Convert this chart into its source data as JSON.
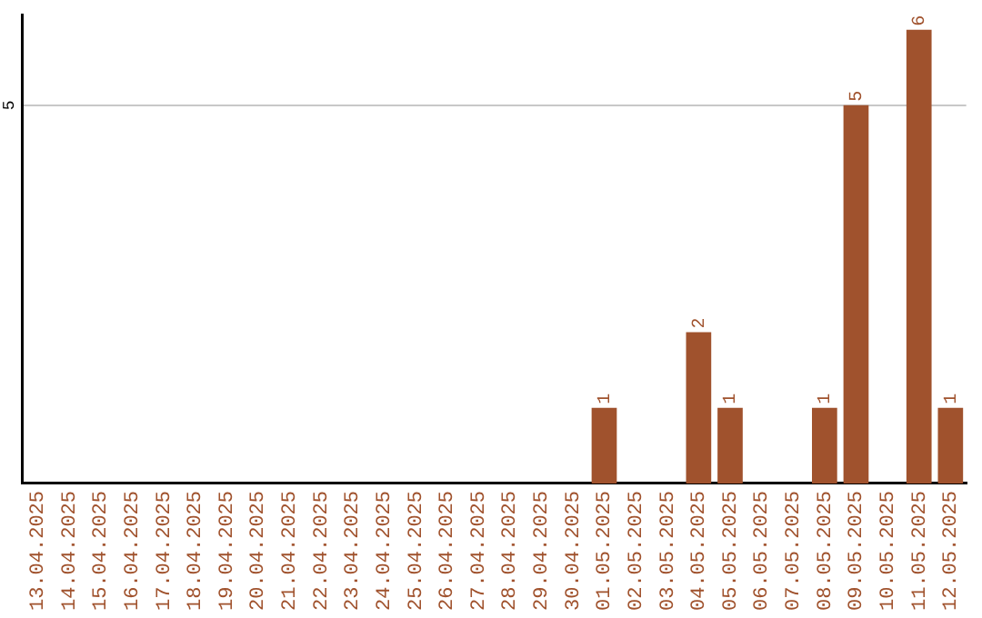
{
  "chart_data": {
    "type": "bar",
    "categories": [
      "13.04.2025",
      "14.04.2025",
      "15.04.2025",
      "16.04.2025",
      "17.04.2025",
      "18.04.2025",
      "19.04.2025",
      "20.04.2025",
      "21.04.2025",
      "22.04.2025",
      "23.04.2025",
      "24.04.2025",
      "25.04.2025",
      "26.04.2025",
      "27.04.2025",
      "28.04.2025",
      "29.04.2025",
      "30.04.2025",
      "01.05.2025",
      "02.05.2025",
      "03.05.2025",
      "04.05.2025",
      "05.05.2025",
      "06.05.2025",
      "07.05.2025",
      "08.05.2025",
      "09.05.2025",
      "10.05.2025",
      "11.05.2025",
      "12.05.2025"
    ],
    "values": [
      null,
      null,
      null,
      null,
      null,
      null,
      null,
      null,
      null,
      null,
      null,
      null,
      null,
      null,
      null,
      null,
      null,
      null,
      1,
      null,
      null,
      2,
      1,
      null,
      null,
      1,
      5,
      null,
      6,
      1
    ],
    "data_labels": true,
    "color": "#a0522d",
    "ylim": [
      0,
      6.2
    ],
    "yticks": [
      5
    ],
    "grid": "y",
    "legend": false
  }
}
